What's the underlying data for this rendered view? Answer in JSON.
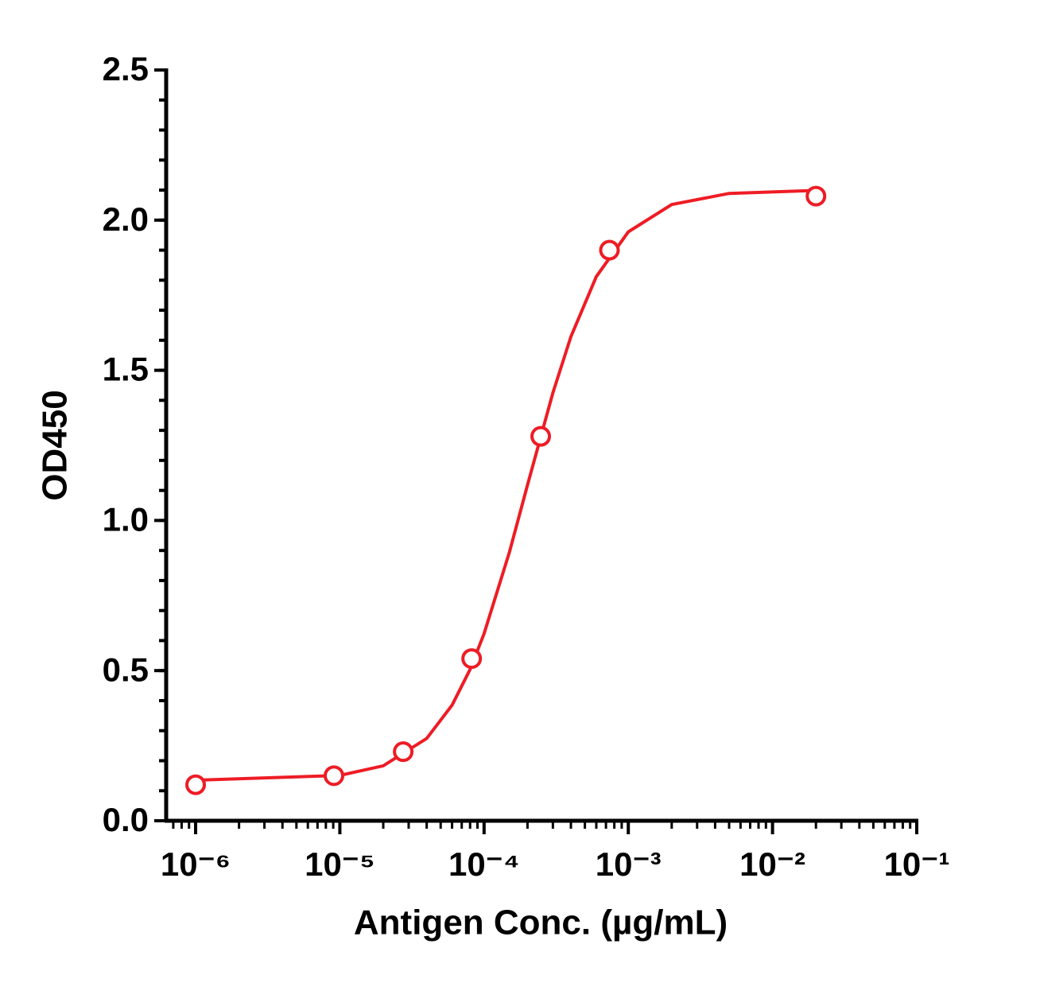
{
  "chart_data": {
    "type": "scatter",
    "x_label": "Antigen Conc. (µg/mL)",
    "y_label": "OD450",
    "log_x": true,
    "xlim": [
      6.25e-07,
      0.1
    ],
    "xticks": [
      {
        "value": 1e-06,
        "label": "10⁻⁶"
      },
      {
        "value": 1e-05,
        "label": "10⁻⁵"
      },
      {
        "value": 0.0001,
        "label": "10⁻⁴"
      },
      {
        "value": 0.001,
        "label": "10⁻³"
      },
      {
        "value": 0.01,
        "label": "10⁻²"
      },
      {
        "value": 0.1,
        "label": "10⁻¹"
      }
    ],
    "ylim": [
      0,
      2.5
    ],
    "yticks": [
      {
        "value": 0,
        "label": "0.0"
      },
      {
        "value": 0.5,
        "label": "0.5"
      },
      {
        "value": 1,
        "label": "1.0"
      },
      {
        "value": 1.5,
        "label": "1.5"
      },
      {
        "value": 2,
        "label": "2.0"
      },
      {
        "value": 2.5,
        "label": "2.5"
      }
    ],
    "y_minor_step": 0.1,
    "color": "#ee1c25",
    "series": [
      {
        "x": [
          1e-06,
          9.1e-06,
          2.75e-05,
          8.2e-05,
          0.000247,
          0.00074,
          0.02
        ],
        "values": [
          0.12,
          0.15,
          0.23,
          0.54,
          1.28,
          1.9,
          2.08
        ]
      },
      {
        "x": [
          1e-06,
          1e-05,
          2e-05,
          4e-05,
          6e-05,
          8e-05,
          0.0001,
          0.00015,
          0.0002,
          0.0003,
          0.0004,
          0.0006,
          0.001,
          0.002,
          0.005,
          0.02
        ],
        "values": [
          0.135,
          0.151,
          0.183,
          0.274,
          0.385,
          0.504,
          0.623,
          0.895,
          1.118,
          1.425,
          1.612,
          1.812,
          1.961,
          2.052,
          2.089,
          2.099
        ]
      }
    ]
  }
}
